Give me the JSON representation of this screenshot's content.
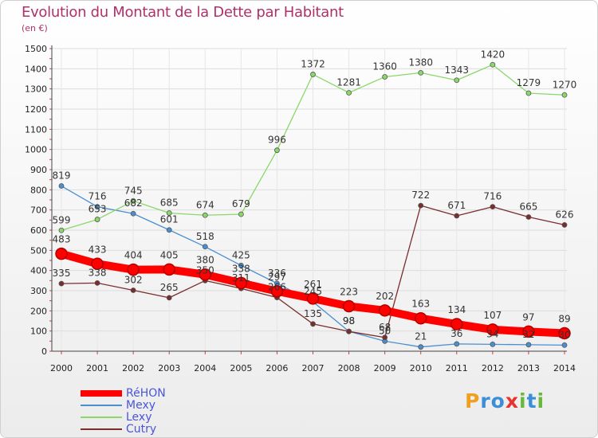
{
  "title": "Evolution du Montant de la Dette par Habitant",
  "subtitle": "(en €)",
  "brand": {
    "letters": [
      "P",
      "r",
      "o",
      "x",
      "i",
      "t",
      "i"
    ],
    "colors": [
      "#f0a020",
      "#3a8fd8",
      "#3a8fd8",
      "#e8342f",
      "#68b83c",
      "#3a8fd8",
      "#68b83c"
    ]
  },
  "chart_data": {
    "type": "line",
    "x": [
      2000,
      2001,
      2002,
      2003,
      2004,
      2005,
      2006,
      2007,
      2008,
      2009,
      2010,
      2011,
      2012,
      2013,
      2014
    ],
    "x_tick_labels": [
      "2000",
      "2001",
      "2002",
      "2003",
      "2004",
      "2005",
      "2006",
      "2007",
      "2008",
      "2009",
      "2010",
      "2011",
      "2012",
      "2013",
      "2014"
    ],
    "ylim": [
      0,
      1500
    ],
    "y_ticks": [
      0,
      100,
      200,
      300,
      400,
      500,
      600,
      700,
      800,
      900,
      1000,
      1100,
      1200,
      1300,
      1400,
      1500
    ],
    "grid": "horizontal",
    "legend": "bottom-left",
    "series": [
      {
        "name": "RéHON",
        "color": "#ff0000",
        "values": [
          483,
          433,
          404,
          405,
          380,
          338,
          297,
          261,
          223,
          202,
          163,
          134,
          107,
          97,
          89
        ]
      },
      {
        "name": "Mexy",
        "color": "#4a8fd0",
        "values": [
          819,
          716,
          682,
          601,
          518,
          425,
          336,
          245,
          98,
          50,
          21,
          36,
          34,
          32,
          30
        ]
      },
      {
        "name": "Lexy",
        "color": "#8ad86a",
        "values": [
          599,
          653,
          745,
          685,
          674,
          679,
          996,
          1372,
          1281,
          1360,
          1380,
          1343,
          1420,
          1279,
          1270
        ]
      },
      {
        "name": "Cutry",
        "color": "#7a2d2d",
        "values": [
          335,
          338,
          302,
          265,
          350,
          311,
          266,
          135,
          98,
          68,
          722,
          671,
          716,
          665,
          626
        ]
      }
    ]
  }
}
